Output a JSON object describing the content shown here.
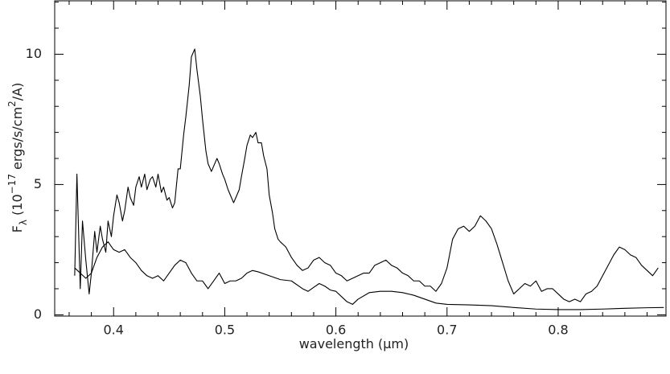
{
  "chart_data": {
    "type": "line",
    "x_label_parts": [
      {
        "text": "wavelength ("
      },
      {
        "text": "μm"
      },
      {
        "text": ")"
      }
    ],
    "y_label_parts": [
      {
        "text": "F"
      },
      {
        "text": "λ",
        "shift": "sub"
      },
      {
        "text": " (10"
      },
      {
        "text": "−17",
        "shift": "super"
      },
      {
        "text": " ergs/s/cm"
      },
      {
        "text": "2",
        "shift": "super"
      },
      {
        "text": "/A)"
      }
    ],
    "xlim": [
      0.347,
      0.897
    ],
    "ylim": [
      -0.05,
      12.05
    ],
    "xticks": [
      0.4,
      0.5,
      0.6,
      0.7,
      0.8
    ],
    "yticks": [
      0,
      5,
      10
    ],
    "xminorticks": [
      0.36,
      0.38,
      0.42,
      0.44,
      0.46,
      0.48,
      0.52,
      0.54,
      0.56,
      0.58,
      0.62,
      0.64,
      0.66,
      0.68,
      0.72,
      0.74,
      0.76,
      0.78,
      0.82,
      0.84,
      0.86,
      0.88
    ],
    "yminorticks": [
      1,
      2,
      3,
      4,
      6,
      7,
      8,
      9,
      11,
      12
    ],
    "series": [
      {
        "color": "#000000",
        "x": [
          0.365,
          0.367,
          0.37,
          0.372,
          0.375,
          0.378,
          0.38,
          0.383,
          0.385,
          0.388,
          0.39,
          0.393,
          0.395,
          0.398,
          0.4,
          0.403,
          0.405,
          0.408,
          0.41,
          0.413,
          0.415,
          0.418,
          0.42,
          0.423,
          0.425,
          0.428,
          0.43,
          0.433,
          0.435,
          0.438,
          0.44,
          0.443,
          0.445,
          0.448,
          0.45,
          0.453,
          0.455,
          0.458,
          0.46,
          0.463,
          0.465,
          0.468,
          0.47,
          0.473,
          0.475,
          0.478,
          0.48,
          0.483,
          0.485,
          0.488,
          0.49,
          0.493,
          0.495,
          0.498,
          0.5,
          0.503,
          0.505,
          0.508,
          0.51,
          0.513,
          0.515,
          0.518,
          0.52,
          0.523,
          0.525,
          0.528,
          0.53,
          0.533,
          0.535,
          0.538,
          0.54,
          0.543,
          0.545,
          0.548,
          0.55,
          0.555,
          0.56,
          0.565,
          0.57,
          0.575,
          0.58,
          0.585,
          0.59,
          0.595,
          0.6,
          0.605,
          0.61,
          0.615,
          0.62,
          0.625,
          0.63,
          0.635,
          0.64,
          0.645,
          0.65,
          0.655,
          0.66,
          0.665,
          0.67,
          0.675,
          0.68,
          0.685,
          0.69,
          0.695,
          0.7,
          0.705,
          0.71,
          0.715,
          0.72,
          0.725,
          0.73,
          0.735,
          0.74,
          0.745,
          0.75,
          0.755,
          0.76,
          0.765,
          0.77,
          0.775,
          0.78,
          0.785,
          0.79,
          0.795,
          0.8,
          0.805,
          0.81,
          0.815,
          0.82,
          0.825,
          0.83,
          0.835,
          0.84,
          0.845,
          0.85,
          0.855,
          0.86,
          0.865,
          0.87,
          0.875,
          0.88,
          0.885,
          0.89
        ],
        "values": [
          1.5,
          5.4,
          1.0,
          3.6,
          2.1,
          0.8,
          1.6,
          3.2,
          2.4,
          3.4,
          2.9,
          2.4,
          3.6,
          3.0,
          3.8,
          4.6,
          4.3,
          3.6,
          4.0,
          4.9,
          4.5,
          4.2,
          4.9,
          5.3,
          4.9,
          5.4,
          4.8,
          5.2,
          5.3,
          4.9,
          5.4,
          4.7,
          4.9,
          4.4,
          4.5,
          4.1,
          4.3,
          5.6,
          5.6,
          6.9,
          7.6,
          8.8,
          9.9,
          10.2,
          9.4,
          8.4,
          7.5,
          6.3,
          5.8,
          5.5,
          5.7,
          6.0,
          5.8,
          5.4,
          5.2,
          4.8,
          4.6,
          4.3,
          4.5,
          4.8,
          5.3,
          6.0,
          6.5,
          6.9,
          6.8,
          7.0,
          6.6,
          6.6,
          6.1,
          5.6,
          4.6,
          3.9,
          3.3,
          2.9,
          2.8,
          2.6,
          2.2,
          1.9,
          1.7,
          1.8,
          2.1,
          2.2,
          2.0,
          1.9,
          1.6,
          1.5,
          1.3,
          1.4,
          1.5,
          1.6,
          1.6,
          1.9,
          2.0,
          2.1,
          1.9,
          1.8,
          1.6,
          1.5,
          1.3,
          1.3,
          1.1,
          1.1,
          0.9,
          1.2,
          1.8,
          2.9,
          3.3,
          3.4,
          3.2,
          3.4,
          3.8,
          3.6,
          3.3,
          2.7,
          2.0,
          1.3,
          0.8,
          1.0,
          1.2,
          1.1,
          1.3,
          0.9,
          1.0,
          1.0,
          0.8,
          0.6,
          0.5,
          0.6,
          0.5,
          0.8,
          0.9,
          1.1,
          1.5,
          1.9,
          2.3,
          2.6,
          2.5,
          2.3,
          2.2,
          1.9,
          1.7,
          1.5,
          1.8
        ]
      },
      {
        "color": "#000000",
        "x": [
          0.365,
          0.375,
          0.38,
          0.385,
          0.39,
          0.395,
          0.4,
          0.405,
          0.41,
          0.415,
          0.42,
          0.425,
          0.43,
          0.435,
          0.44,
          0.445,
          0.45,
          0.455,
          0.46,
          0.465,
          0.47,
          0.475,
          0.48,
          0.485,
          0.49,
          0.495,
          0.5,
          0.505,
          0.51,
          0.515,
          0.52,
          0.525,
          0.53,
          0.54,
          0.55,
          0.56,
          0.57,
          0.575,
          0.58,
          0.585,
          0.59,
          0.595,
          0.6,
          0.605,
          0.61,
          0.615,
          0.62,
          0.63,
          0.64,
          0.65,
          0.66,
          0.67,
          0.68,
          0.69,
          0.7,
          0.72,
          0.74,
          0.76,
          0.78,
          0.8,
          0.82,
          0.84,
          0.86,
          0.88,
          0.895
        ],
        "values": [
          1.8,
          1.4,
          1.6,
          2.2,
          2.6,
          2.8,
          2.5,
          2.4,
          2.5,
          2.2,
          2.0,
          1.7,
          1.5,
          1.4,
          1.5,
          1.3,
          1.6,
          1.9,
          2.1,
          2.0,
          1.6,
          1.3,
          1.3,
          1.0,
          1.3,
          1.6,
          1.2,
          1.3,
          1.3,
          1.4,
          1.6,
          1.7,
          1.65,
          1.5,
          1.35,
          1.3,
          1.0,
          0.9,
          1.05,
          1.2,
          1.1,
          0.95,
          0.9,
          0.7,
          0.5,
          0.4,
          0.6,
          0.85,
          0.9,
          0.9,
          0.85,
          0.75,
          0.6,
          0.45,
          0.4,
          0.38,
          0.35,
          0.28,
          0.22,
          0.2,
          0.2,
          0.22,
          0.25,
          0.27,
          0.28
        ]
      }
    ]
  }
}
